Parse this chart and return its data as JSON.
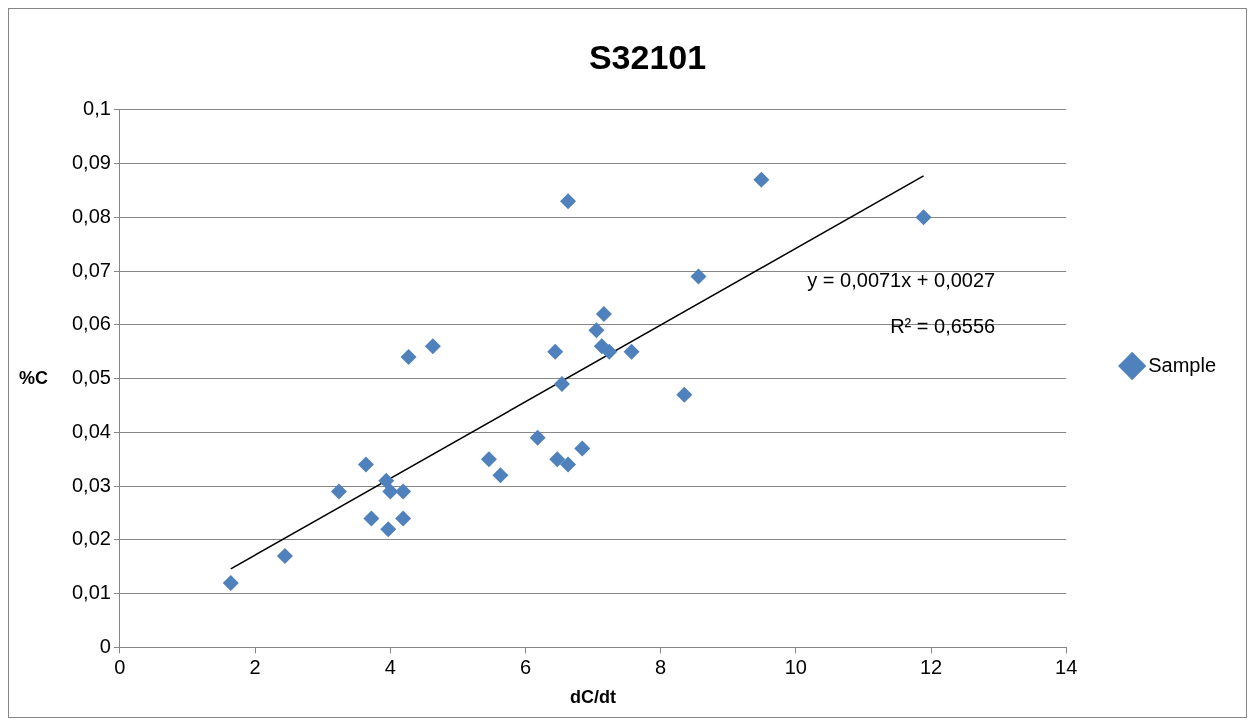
{
  "chart_data": {
    "type": "scatter",
    "title": "S32101",
    "xlabel": "dC/dt",
    "ylabel": "%C",
    "xlim": [
      0,
      14
    ],
    "xticks": [
      0,
      2,
      4,
      6,
      8,
      10,
      12,
      14
    ],
    "ylim": [
      0,
      0.1
    ],
    "yticks": [
      {
        "value": 0,
        "label": "0"
      },
      {
        "value": 0.01,
        "label": "0,01"
      },
      {
        "value": 0.02,
        "label": "0,02"
      },
      {
        "value": 0.03,
        "label": "0,03"
      },
      {
        "value": 0.04,
        "label": "0,04"
      },
      {
        "value": 0.05,
        "label": "0,05"
      },
      {
        "value": 0.06,
        "label": "0,06"
      },
      {
        "value": 0.07,
        "label": "0,07"
      },
      {
        "value": 0.08,
        "label": "0,08"
      },
      {
        "value": 0.09,
        "label": "0,09"
      },
      {
        "value": 0.1,
        "label": "0,1"
      }
    ],
    "grid": "y",
    "legend": "right",
    "series": [
      {
        "name": "Sample",
        "color": "#4f81bd",
        "marker": "diamond",
        "x": [
          1.64,
          2.44,
          3.24,
          3.64,
          3.72,
          3.94,
          4.0,
          3.97,
          4.19,
          4.19,
          4.27,
          4.63,
          5.46,
          5.63,
          6.18,
          6.44,
          6.47,
          6.54,
          6.63,
          6.63,
          6.84,
          7.05,
          7.13,
          7.16,
          7.24,
          7.57,
          8.35,
          8.56,
          9.49,
          11.89
        ],
        "values": [
          0.012,
          0.017,
          0.029,
          0.034,
          0.024,
          0.031,
          0.029,
          0.022,
          0.029,
          0.024,
          0.054,
          0.056,
          0.035,
          0.032,
          0.039,
          0.055,
          0.035,
          0.049,
          0.034,
          0.083,
          0.037,
          0.059,
          0.056,
          0.062,
          0.055,
          0.055,
          0.047,
          0.069,
          0.087,
          0.08
        ]
      },
      {
        "type": "line",
        "color": "#000000",
        "marker": "none",
        "x": [
          1.64,
          11.89
        ],
        "values": [
          0.0146,
          0.0877
        ]
      }
    ],
    "annotations": [
      "y = 0,0071x + 0,0027",
      "R² = 0,6556"
    ]
  }
}
